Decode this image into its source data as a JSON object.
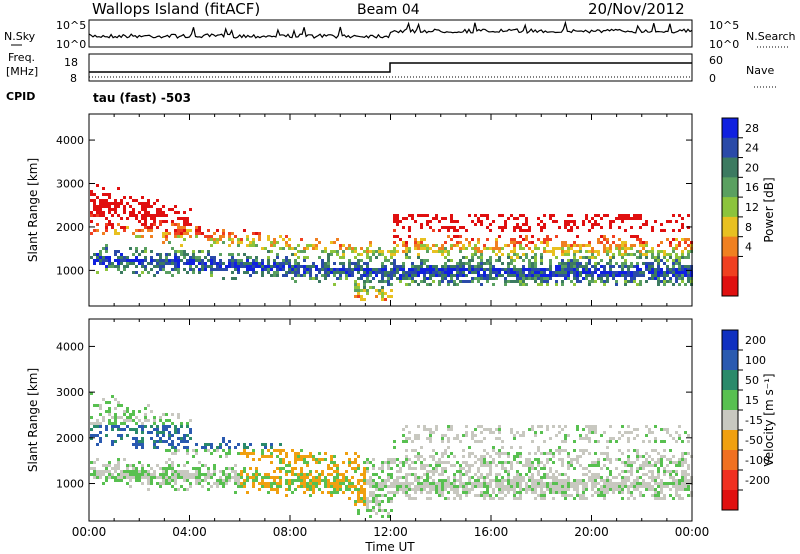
{
  "header": {
    "site": "Wallops Island (fitACF)",
    "beam": "Beam 04",
    "date": "20/Nov/2012"
  },
  "noise_panel": {
    "left_label": "N.Sky",
    "right_label": "N.Search",
    "left_ticks": [
      "10^5",
      "10^0"
    ],
    "right_ticks": [
      "10^5",
      "10^0"
    ]
  },
  "freq_panel": {
    "left_label_line1": "Freq.",
    "left_label_line2": "[MHz]",
    "right_label": "Nave",
    "left_ticks": [
      "18",
      "8"
    ],
    "right_ticks": [
      "60",
      "0"
    ],
    "cpid_label": "CPID",
    "cpid_text": "tau (fast) -503"
  },
  "chart_data": [
    {
      "type": "heatmap",
      "title": "Power",
      "ylabel": "Slant Range [km]",
      "xlabel": "Time UT",
      "ylim": [
        180,
        4600
      ],
      "yticks": [
        "4000",
        "3000",
        "2000",
        "1000"
      ],
      "xticks": [
        "00:00",
        "04:00",
        "08:00",
        "12:00",
        "16:00",
        "20:00",
        "00:00"
      ],
      "colorbar": {
        "label": "Power [dB]",
        "ticks": [
          "28",
          "24",
          "20",
          "16",
          "12",
          "8",
          "4"
        ],
        "colors": [
          "#1020e0",
          "#2a4aa8",
          "#3c7a60",
          "#5aa060",
          "#8cc43c",
          "#e8c020",
          "#f08020",
          "#f04020",
          "#e01010"
        ]
      }
    },
    {
      "type": "heatmap",
      "title": "Velocity",
      "ylabel": "Slant Range [km]",
      "xlabel": "Time UT",
      "ylim": [
        180,
        4600
      ],
      "yticks": [
        "4000",
        "3000",
        "2000",
        "1000"
      ],
      "xticks": [
        "00:00",
        "04:00",
        "08:00",
        "12:00",
        "16:00",
        "20:00",
        "00:00"
      ],
      "colorbar": {
        "label": "Velocity [m s⁻¹]",
        "ticks": [
          "200",
          "100",
          "50",
          "15",
          "-15",
          "-50",
          "-100",
          "-200"
        ],
        "colors": [
          "#1030c0",
          "#2a5ab0",
          "#2a8a6a",
          "#58c050",
          "#c8c8c0",
          "#f0a010",
          "#f07020",
          "#f03020",
          "#e01010"
        ]
      }
    }
  ],
  "xaxis_title": "Time UT"
}
